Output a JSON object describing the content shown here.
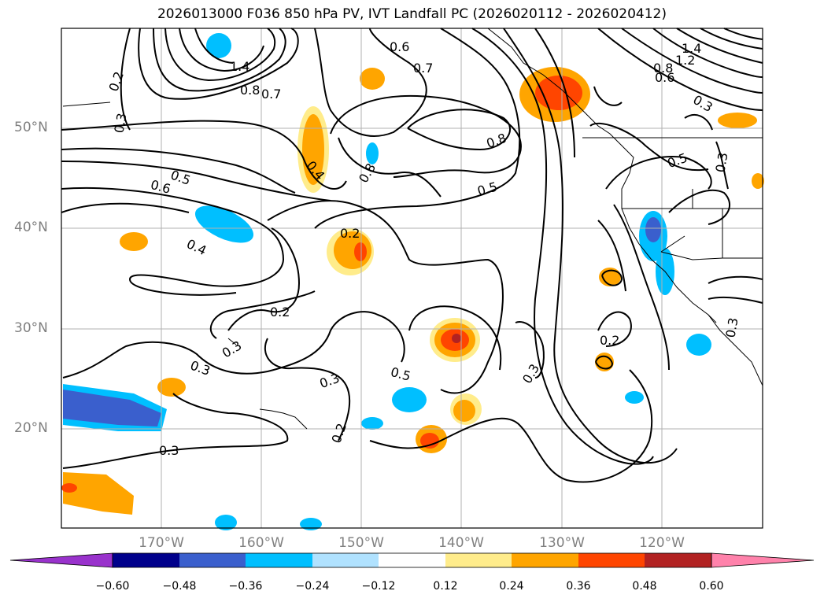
{
  "title": "2026013000 F036 850 hPa PV, IVT Landfall PC (2026020112 - 2026020412)",
  "lat_labels": [
    "50°N",
    "40°N",
    "30°N",
    "20°N"
  ],
  "lon_labels": [
    "170°W",
    "160°W",
    "150°W",
    "140°W",
    "130°W",
    "120°W"
  ],
  "colorbar": {
    "ticks": [
      "−0.60",
      "−0.48",
      "−0.36",
      "−0.24",
      "−0.12",
      "0.12",
      "0.24",
      "0.36",
      "0.48",
      "0.60"
    ],
    "colors": [
      "#9932cc",
      "#00008b",
      "#3a5fcd",
      "#00bfff",
      "#b0e2ff",
      "#ffffff",
      "#ffec8b",
      "#ffa500",
      "#ff4500",
      "#b22222",
      "#ff82ab"
    ]
  },
  "contour_labels": [
    "0.2",
    "0.3",
    "1.4",
    "0.8",
    "0.7",
    "0.6",
    "0.7",
    "0.8",
    "1.4",
    "1.2",
    "0.8",
    "0.6",
    "0.3",
    "0.4",
    "0.8",
    "0.5",
    "0.6",
    "0.5",
    "0.5",
    "0.3",
    "0.4",
    "0.2",
    "0.2",
    "0.3",
    "0.3",
    "0.3",
    "0.5",
    "0.3",
    "0.2",
    "0.2",
    "0.3",
    "0.3"
  ]
}
